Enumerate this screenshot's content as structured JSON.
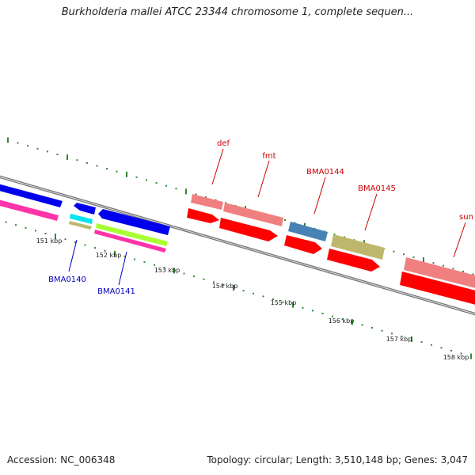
{
  "header": {
    "title": "Burkholderia mallei ATCC 23344 chromosome 1, complete sequen..."
  },
  "footer": {
    "accession": "Accession: NC_006348",
    "summary": "Topology: circular; Length: 3,510,148 bp; Genes: 3,047"
  },
  "ruler": {
    "labels": [
      "151 kbp",
      "152 kbp",
      "153 kbp",
      "154 kbp",
      "155 kbp",
      "156 kbp",
      "157 kbp",
      "158 kbp"
    ]
  },
  "genes": [
    {
      "name": "BMA0140",
      "color": "#0000bb"
    },
    {
      "name": "BMA0141",
      "color": "#0000bb"
    },
    {
      "name": "def",
      "color": "#cc0000"
    },
    {
      "name": "fmt",
      "color": "#cc0000"
    },
    {
      "name": "BMA0144",
      "color": "#cc0000"
    },
    {
      "name": "BMA0145",
      "color": "#cc0000"
    },
    {
      "name": "sun",
      "color": "#cc0000"
    }
  ],
  "colors": {
    "backbone": "#888888",
    "tick": "#338833",
    "blue_gene": "#0000ee",
    "red_gene": "#ff0000",
    "pink_gene": "#f08080",
    "magenta_gene": "#ff33aa",
    "steel_gene": "#4682b4",
    "khaki_gene": "#bdb76b",
    "cyan_gene": "#00e5ee",
    "lime_gene": "#aaff33"
  }
}
